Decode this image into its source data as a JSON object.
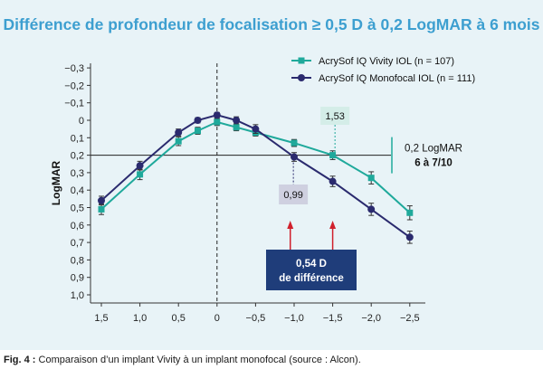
{
  "chart_data": {
    "type": "line",
    "title": "Différence de profondeur de focalisation ≥ 0,5 D à 0,2 LogMAR à 6 mois",
    "ylabel": "LogMAR",
    "xlabel": "",
    "x_ticks": [
      "1,5",
      "1,0",
      "0,5",
      "0",
      "−0,5",
      "−1,0",
      "−1,5",
      "−2,0",
      "−2,5"
    ],
    "y_ticks": [
      "−0,3",
      "−0,2",
      "−0,1",
      "0",
      "0,1",
      "0,2",
      "0,3",
      "0,4",
      "0,5",
      "0,6",
      "0,7",
      "0,8",
      "0,9",
      "1,0"
    ],
    "xlim": [
      1.75,
      -2.75
    ],
    "ylim": [
      -0.32,
      1.0
    ],
    "y_inverted": true,
    "grid": false,
    "legend_position": "top-right",
    "series": [
      {
        "name": "AcrySof IQ Vivity IOL (n = 107)",
        "color": "#1fa99b",
        "marker": "square",
        "x": [
          1.5,
          1.0,
          0.5,
          0.25,
          0.0,
          -0.25,
          -0.5,
          -1.0,
          -1.5,
          -2.0,
          -2.5
        ],
        "y": [
          0.51,
          0.31,
          0.12,
          0.06,
          0.01,
          0.04,
          0.07,
          0.13,
          0.2,
          0.33,
          0.53
        ],
        "err": [
          0.03,
          0.03,
          0.025,
          0.02,
          0.02,
          0.02,
          0.02,
          0.02,
          0.025,
          0.035,
          0.04
        ]
      },
      {
        "name": "AcrySof IQ Monofocal IOL (n = 111)",
        "color": "#2a2a6e",
        "marker": "circle",
        "x": [
          1.5,
          1.0,
          0.5,
          0.25,
          0.0,
          -0.25,
          -0.5,
          -1.0,
          -1.5,
          -2.0,
          -2.5
        ],
        "y": [
          0.46,
          0.26,
          0.07,
          0.0,
          -0.03,
          0.0,
          0.05,
          0.21,
          0.35,
          0.51,
          0.67
        ],
        "err": [
          0.025,
          0.025,
          0.02,
          0.015,
          0.015,
          0.02,
          0.025,
          0.025,
          0.03,
          0.035,
          0.035
        ]
      }
    ],
    "threshold": {
      "y": 0.2,
      "label_line1": "0,2 LogMAR",
      "label_line2": "6 à 7/10"
    },
    "annotations": {
      "vivity_value": "1,53",
      "monofocal_value": "0,99",
      "difference_line1": "0,54 D",
      "difference_line2": "de différence"
    }
  },
  "caption": {
    "prefix": "Fig. 4 :",
    "text": " Comparaison d’un implant Vivity à un implant monofocal (source : Alcon)."
  },
  "colors": {
    "background": "#e8f3f7",
    "title": "#3d9fd0",
    "vivity": "#1fa99b",
    "monofocal": "#2a2a6e",
    "arrow": "#d0202c",
    "box": "#1f3d7a"
  }
}
